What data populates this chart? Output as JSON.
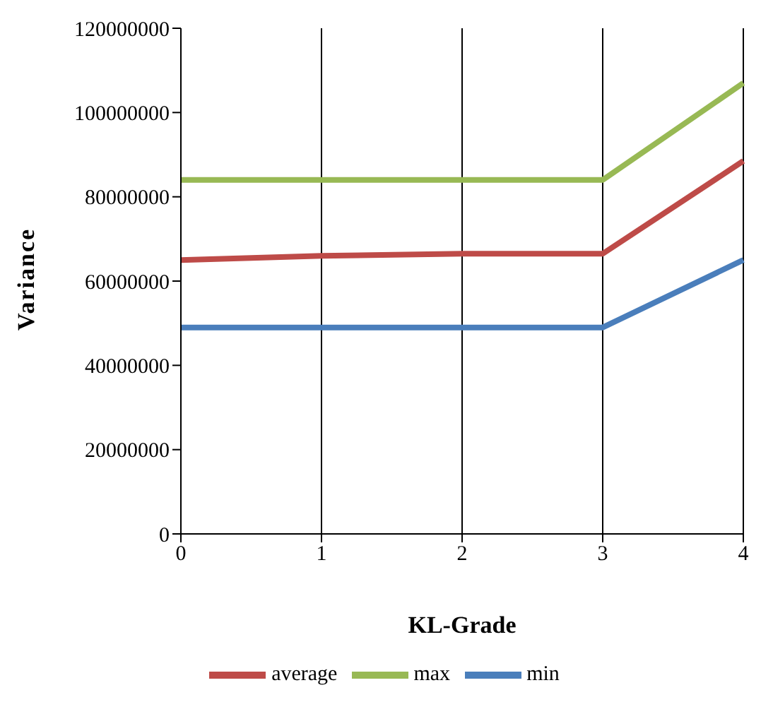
{
  "chart_data": {
    "type": "line",
    "xlabel": "KL-Grade",
    "ylabel": "Variance",
    "categories": [
      "0",
      "1",
      "2",
      "3",
      "4"
    ],
    "series": [
      {
        "name": "min",
        "color": "#4a7ebb",
        "values": [
          49000000,
          49000000,
          49000000,
          49000000,
          65000000
        ]
      },
      {
        "name": "average",
        "color": "#be4b48",
        "values": [
          65000000,
          66000000,
          66500000,
          66500000,
          88500000
        ]
      },
      {
        "name": "max",
        "color": "#98b954",
        "values": [
          84000000,
          84000000,
          84000000,
          84000000,
          107000000
        ]
      }
    ],
    "ylim": [
      0,
      120000000
    ],
    "yticks": [
      0,
      20000000,
      40000000,
      60000000,
      80000000,
      100000000,
      120000000
    ],
    "grid": "x",
    "legend": "bottom",
    "marker": "none",
    "line_style": "solid"
  }
}
